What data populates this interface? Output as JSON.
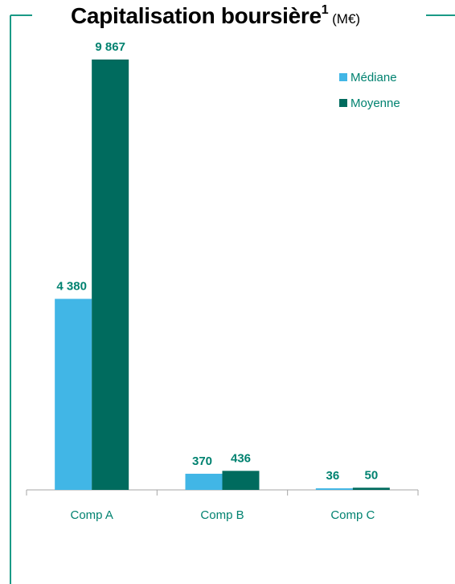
{
  "title": {
    "main": "Capitalisation boursière",
    "superscript": "1",
    "unit": "(M€)"
  },
  "colors": {
    "mediane": "#41b6e6",
    "moyenne": "#006b5e",
    "label": "#008270",
    "frame": "#1a9a86",
    "axis": "#a6a6a6"
  },
  "chart_data": {
    "type": "bar",
    "title": "Capitalisation boursière",
    "unit": "(M€)",
    "categories": [
      "Comp A",
      "Comp B",
      "Comp C"
    ],
    "series": [
      {
        "name": "Médiane",
        "values": [
          4380,
          370,
          36
        ],
        "labels": [
          "4 380",
          "370",
          "36"
        ]
      },
      {
        "name": "Moyenne",
        "values": [
          9867,
          436,
          50
        ],
        "labels": [
          "9 867",
          "436",
          "50"
        ]
      }
    ],
    "ylim": [
      0,
      9867
    ],
    "grid": false,
    "legend": "top-right",
    "xlabel": "",
    "ylabel": ""
  },
  "legend": {
    "items": [
      {
        "label": "Médiane"
      },
      {
        "label": "Moyenne"
      }
    ]
  }
}
